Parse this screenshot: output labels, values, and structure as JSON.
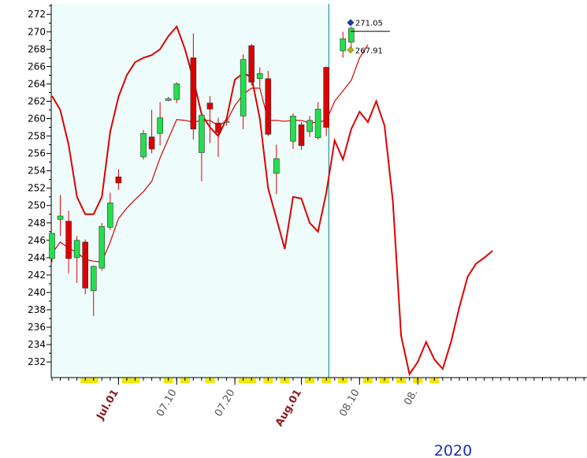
{
  "chart_data": {
    "type": "candlestick",
    "title": "",
    "xlabel": "",
    "ylabel": "",
    "year_label": "2020",
    "ylim": [
      230.2,
      273.2
    ],
    "yticks": [
      232,
      234,
      236,
      238,
      240,
      242,
      244,
      246,
      248,
      250,
      252,
      254,
      256,
      258,
      260,
      262,
      264,
      266,
      268,
      270,
      272
    ],
    "xticks": [
      {
        "label": "Jul.01",
        "day": 8,
        "style": "month"
      },
      {
        "label": "07.10",
        "day": 15,
        "style": "day"
      },
      {
        "label": "07.20",
        "day": 22,
        "style": "day"
      },
      {
        "label": "Aug.01",
        "day": 30,
        "style": "month"
      },
      {
        "label": "08.10",
        "day": 37,
        "style": "day"
      },
      {
        "label": "08.",
        "day": 44,
        "style": "day"
      }
    ],
    "weekend_days": [
      4,
      5,
      9,
      10,
      14,
      16,
      19,
      23,
      24,
      26,
      28,
      31,
      33,
      35,
      38,
      40,
      42,
      44,
      46
    ],
    "shaded_until_day": 33.3,
    "cursor_day": 33.3,
    "candles": [
      {
        "d": 0,
        "o": 243.9,
        "h": 246.8,
        "l": 243.5,
        "c": 246.8
      },
      {
        "d": 1,
        "o": 248.4,
        "h": 251.2,
        "l": 246.5,
        "c": 248.8
      },
      {
        "d": 2,
        "o": 248.2,
        "h": 249.4,
        "l": 242.2,
        "c": 243.9
      },
      {
        "d": 3,
        "o": 244.0,
        "h": 246.5,
        "l": 241.1,
        "c": 246.0
      },
      {
        "d": 4,
        "o": 245.8,
        "h": 246.1,
        "l": 239.8,
        "c": 240.5
      },
      {
        "d": 5,
        "o": 240.2,
        "h": 243.1,
        "l": 237.3,
        "c": 243.0
      },
      {
        "d": 6,
        "o": 242.8,
        "h": 248.0,
        "l": 242.5,
        "c": 247.6
      },
      {
        "d": 7,
        "o": 247.5,
        "h": 251.5,
        "l": 247.2,
        "c": 250.3
      },
      {
        "d": 8,
        "o": 253.3,
        "h": 254.2,
        "l": 251.8,
        "c": 252.6
      },
      {
        "d": 11,
        "o": 255.6,
        "h": 258.7,
        "l": 255.3,
        "c": 258.3
      },
      {
        "d": 12,
        "o": 257.9,
        "h": 261.0,
        "l": 256.0,
        "c": 256.5
      },
      {
        "d": 13,
        "o": 258.3,
        "h": 261.9,
        "l": 256.9,
        "c": 260.1
      },
      {
        "d": 14,
        "o": 262.1,
        "h": 262.5,
        "l": 262.0,
        "c": 262.3
      },
      {
        "d": 15,
        "o": 262.2,
        "h": 264.2,
        "l": 261.8,
        "c": 264.0
      },
      {
        "d": 17,
        "o": 267.0,
        "h": 269.8,
        "l": 257.6,
        "c": 258.8
      },
      {
        "d": 18,
        "o": 256.1,
        "h": 260.5,
        "l": 252.8,
        "c": 260.4
      },
      {
        "d": 19,
        "o": 261.8,
        "h": 262.6,
        "l": 257.2,
        "c": 261.1
      },
      {
        "d": 20,
        "o": 259.5,
        "h": 260.1,
        "l": 255.6,
        "c": 258.4
      },
      {
        "d": 21,
        "o": 259.7,
        "h": 260.2,
        "l": 259.2,
        "c": 259.7
      },
      {
        "d": 23,
        "o": 260.3,
        "h": 267.4,
        "l": 258.8,
        "c": 266.8
      },
      {
        "d": 24,
        "o": 268.4,
        "h": 268.6,
        "l": 263.8,
        "c": 264.2
      },
      {
        "d": 25,
        "o": 264.6,
        "h": 265.9,
        "l": 263.6,
        "c": 265.2
      },
      {
        "d": 26,
        "o": 264.6,
        "h": 265.5,
        "l": 258.0,
        "c": 258.2
      },
      {
        "d": 27,
        "o": 253.7,
        "h": 257.0,
        "l": 251.3,
        "c": 255.4
      },
      {
        "d": 29,
        "o": 257.4,
        "h": 260.6,
        "l": 256.5,
        "c": 260.3
      },
      {
        "d": 30,
        "o": 259.3,
        "h": 259.6,
        "l": 256.4,
        "c": 256.9
      },
      {
        "d": 31,
        "o": 258.5,
        "h": 260.3,
        "l": 257.9,
        "c": 259.8
      },
      {
        "d": 32,
        "o": 257.8,
        "h": 261.9,
        "l": 257.6,
        "c": 261.1
      },
      {
        "d": 33,
        "o": 265.9,
        "h": 266.0,
        "l": 258.0,
        "c": 259.0
      },
      {
        "d": 35,
        "o": 267.8,
        "h": 270.0,
        "l": 267.0,
        "c": 269.2
      },
      {
        "d": 36,
        "o": 268.8,
        "h": 270.6,
        "l": 268.0,
        "c": 270.4
      }
    ],
    "series": [
      {
        "kind": "band-upper",
        "color": "#dd0000",
        "points": [
          [
            0,
            262.6
          ],
          [
            1,
            261.0
          ],
          [
            2,
            257.0
          ],
          [
            3,
            251.0
          ],
          [
            4,
            249.0
          ],
          [
            5,
            249.0
          ],
          [
            6,
            251.0
          ],
          [
            7,
            258.5
          ],
          [
            8,
            262.5
          ],
          [
            9,
            265.0
          ],
          [
            10,
            266.5
          ],
          [
            11,
            267.0
          ],
          [
            12,
            267.3
          ],
          [
            13,
            268.0
          ],
          [
            14,
            269.5
          ],
          [
            15,
            270.6
          ],
          [
            16,
            268.0
          ],
          [
            17,
            264.5
          ],
          [
            18,
            260.5
          ],
          [
            19,
            259.0
          ],
          [
            20,
            258.0
          ],
          [
            21,
            260.0
          ],
          [
            22,
            264.5
          ],
          [
            23,
            265.2
          ],
          [
            24,
            264.8
          ],
          [
            25,
            260.0
          ],
          [
            26,
            252.0
          ],
          [
            27,
            248.5
          ],
          [
            28,
            245.0
          ],
          [
            29,
            251.0
          ],
          [
            30,
            250.8
          ],
          [
            31,
            248.0
          ],
          [
            32,
            247.0
          ],
          [
            33,
            251.5
          ],
          [
            34,
            257.5
          ],
          [
            35,
            255.3
          ],
          [
            36,
            258.8
          ],
          [
            37,
            260.8
          ],
          [
            38,
            259.6
          ],
          [
            39,
            262.0
          ],
          [
            40,
            259.2
          ],
          [
            41,
            250.5
          ],
          [
            42,
            235.0
          ],
          [
            43,
            230.6
          ],
          [
            44,
            232.0
          ],
          [
            45,
            234.3
          ],
          [
            46,
            232.3
          ],
          [
            47,
            231.2
          ],
          [
            48,
            234.3
          ],
          [
            49,
            238.3
          ],
          [
            50,
            241.8
          ],
          [
            51,
            243.3
          ],
          [
            52,
            244.0
          ],
          [
            53,
            244.8
          ]
        ]
      },
      {
        "kind": "moving-average",
        "color": "#dd0000",
        "points": [
          [
            0,
            244.5
          ],
          [
            1,
            245.8
          ],
          [
            2,
            245.1
          ],
          [
            3,
            244.6
          ],
          [
            4,
            243.8
          ],
          [
            5,
            243.6
          ],
          [
            6,
            243.5
          ],
          [
            7,
            245.8
          ],
          [
            8,
            248.5
          ],
          [
            9,
            249.7
          ],
          [
            10,
            250.7
          ],
          [
            11,
            251.6
          ],
          [
            12,
            252.8
          ],
          [
            13,
            255.5
          ],
          [
            14,
            257.7
          ],
          [
            15,
            259.9
          ],
          [
            16,
            259.8
          ],
          [
            17,
            259.6
          ],
          [
            18,
            259.8
          ],
          [
            19,
            259.8
          ],
          [
            20,
            259.2
          ],
          [
            21,
            259.7
          ],
          [
            22,
            261.5
          ],
          [
            23,
            262.8
          ],
          [
            24,
            263.5
          ],
          [
            25,
            263.5
          ],
          [
            26,
            259.8
          ],
          [
            27,
            259.8
          ],
          [
            28,
            259.7
          ],
          [
            29,
            259.8
          ],
          [
            30,
            259.8
          ],
          [
            31,
            259.5
          ],
          [
            32,
            259.6
          ],
          [
            33,
            259.8
          ],
          [
            34,
            262.0
          ],
          [
            35,
            263.2
          ],
          [
            36,
            264.4
          ],
          [
            37,
            267.0
          ],
          [
            38,
            268.5
          ]
        ]
      }
    ],
    "annotations": [
      {
        "label": "271.05",
        "value": 271.05,
        "day": 38.0,
        "marker": "diamond",
        "color": "#1a3fa8"
      },
      {
        "label": "267.91",
        "value": 267.91,
        "day": 38.0,
        "marker": "diamond",
        "color": "#b5b800"
      }
    ],
    "colors": {
      "up": "#22e04a",
      "down": "#dd0000",
      "shade": "#eefcfc",
      "weekend": "#f2e600",
      "cursor": "#008080"
    }
  }
}
